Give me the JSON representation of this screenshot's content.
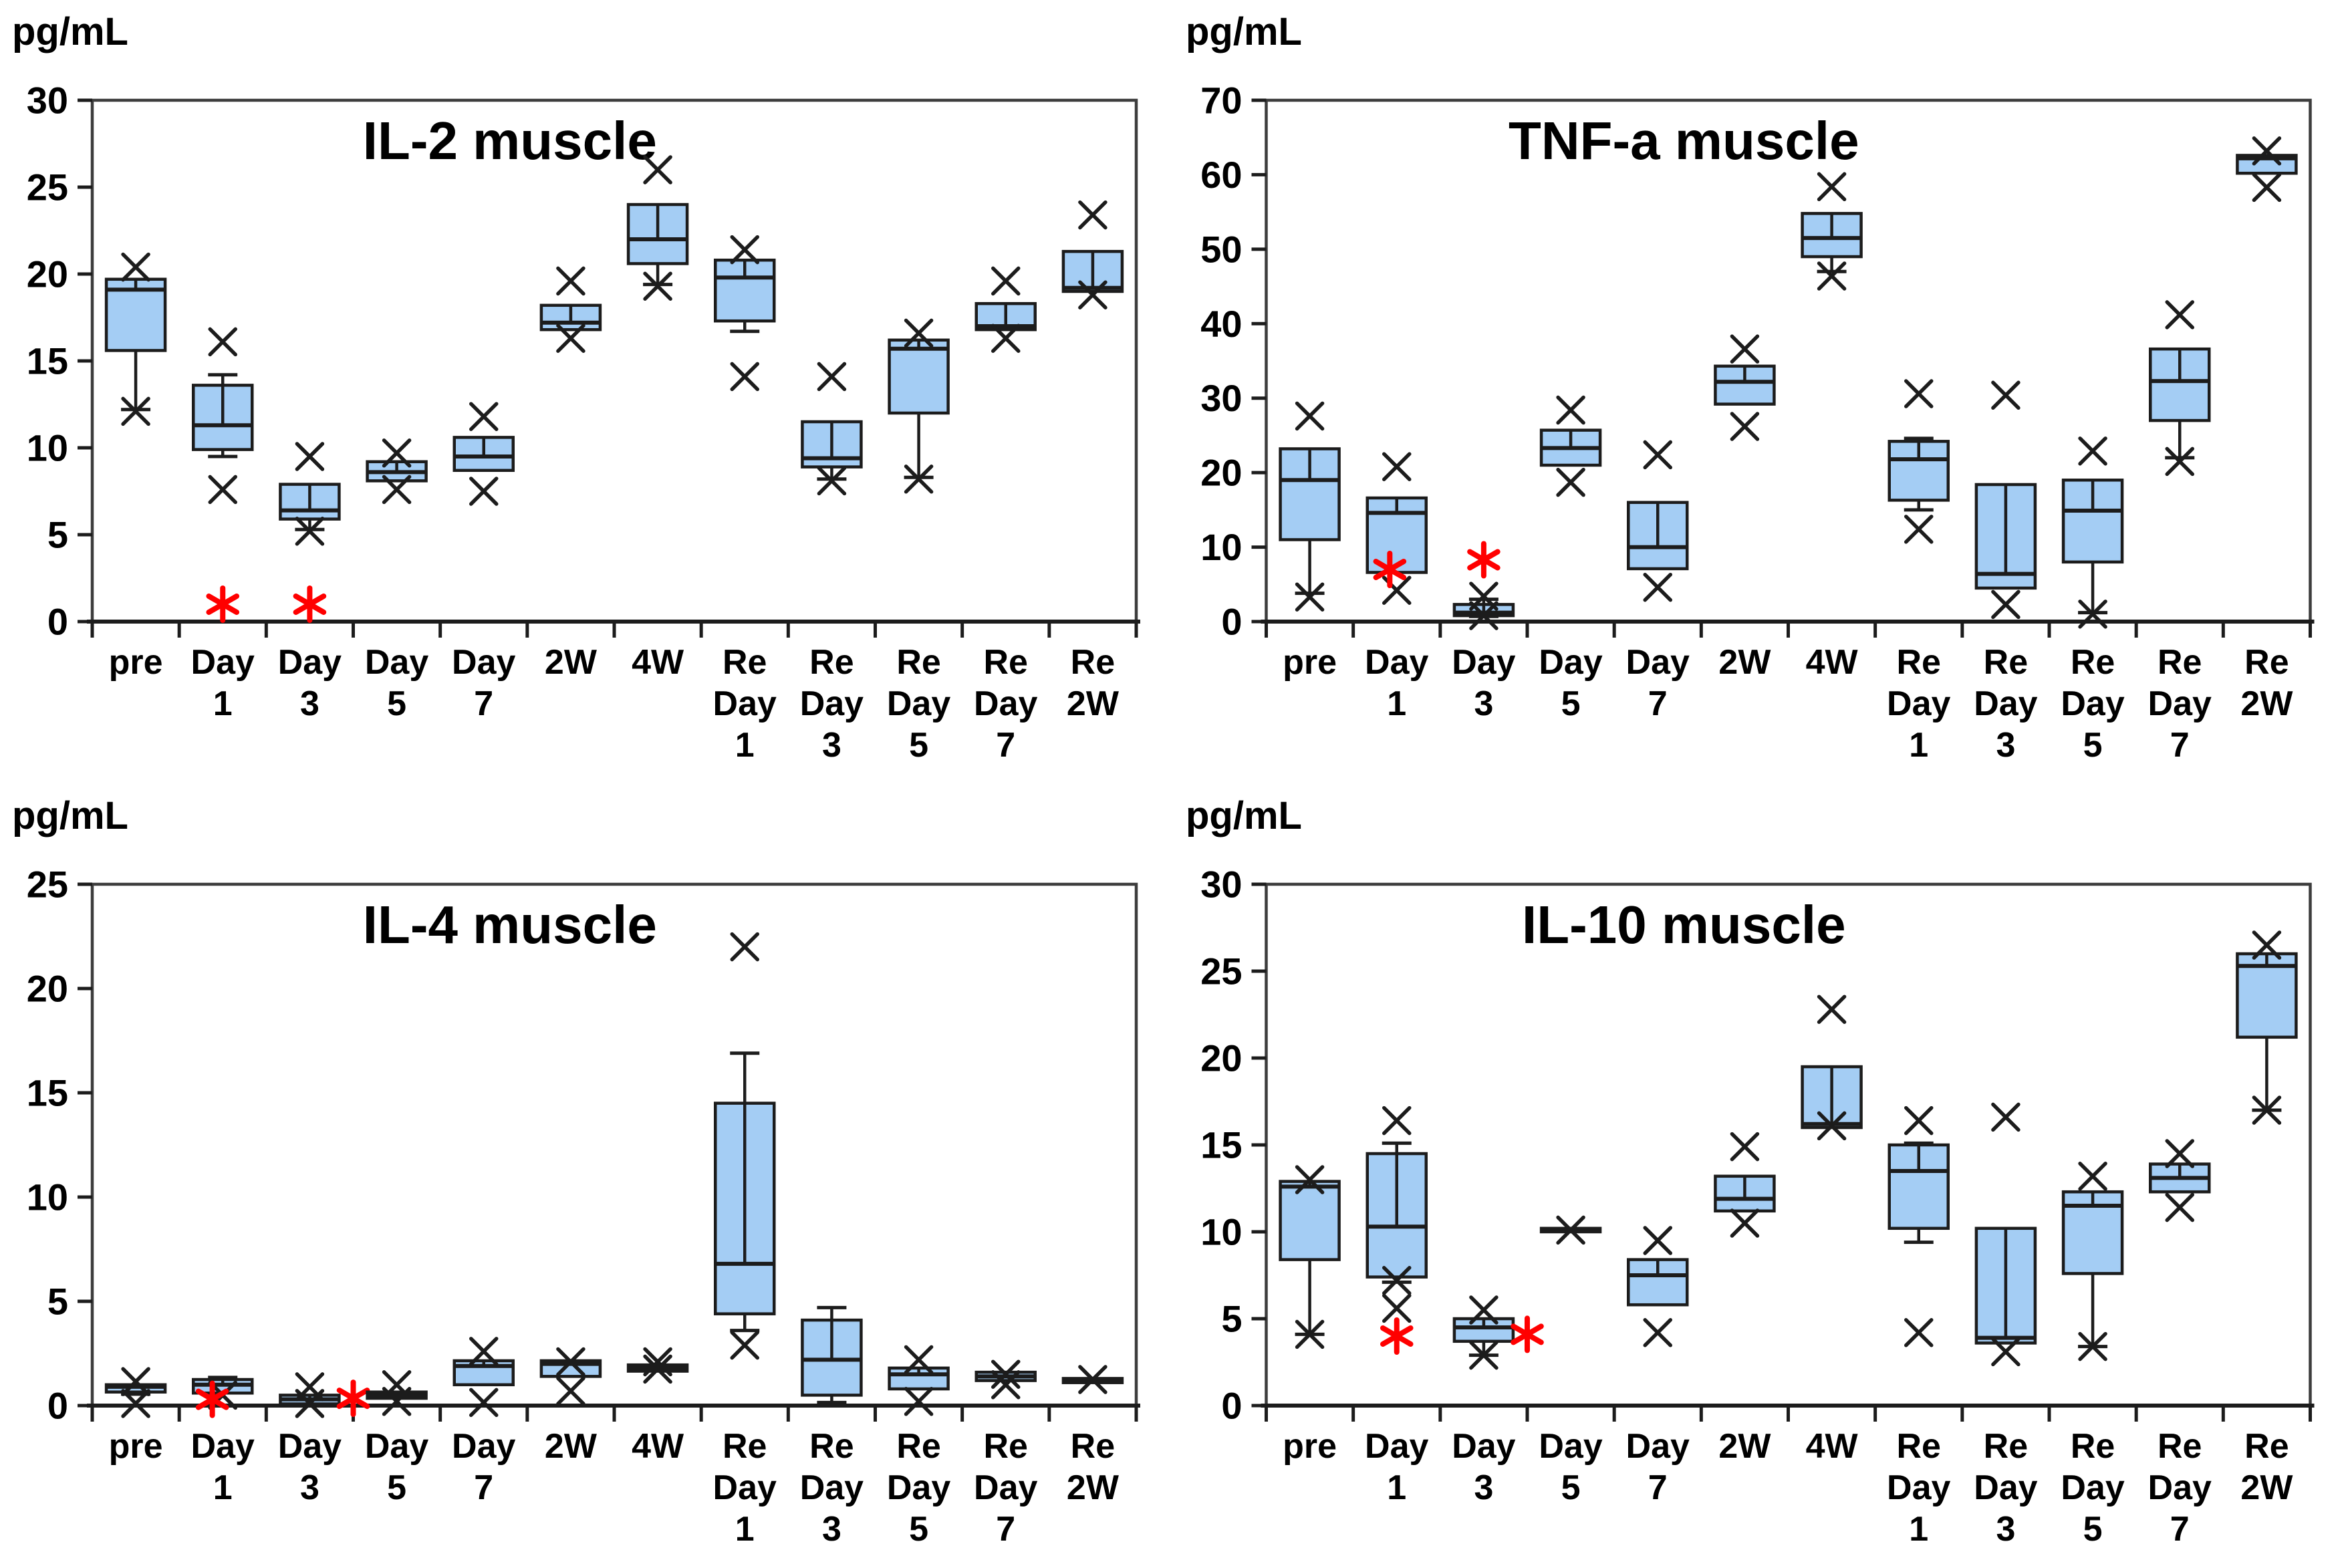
{
  "figure": {
    "unit": "pg/mL"
  },
  "colors": {
    "box_fill": "#A4CDF4",
    "line": "#1C1C1C",
    "plot_border": "#3D3D3D",
    "star": "#FF0000",
    "background": "#FFFFFF",
    "text": "#000000"
  },
  "categories": [
    [
      "pre"
    ],
    [
      "Day",
      "1"
    ],
    [
      "Day",
      "3"
    ],
    [
      "Day",
      "5"
    ],
    [
      "Day",
      "7"
    ],
    [
      "2W"
    ],
    [
      "4W"
    ],
    [
      "Re",
      "Day",
      "1"
    ],
    [
      "Re",
      "Day",
      "3"
    ],
    [
      "Re",
      "Day",
      "5"
    ],
    [
      "Re",
      "Day",
      "7"
    ],
    [
      "Re",
      "2W"
    ]
  ],
  "chart_data": [
    {
      "type": "box",
      "title": "IL-2 muscle",
      "ylabel": "pg/mL",
      "ylim": [
        0,
        30
      ],
      "ytick_step": 5,
      "grid": false,
      "legend": null,
      "boxes": [
        {
          "lo": 12.2,
          "q1": 15.6,
          "med": 19.1,
          "q3": 19.7,
          "hi": 19.7,
          "out": [
            20.4,
            12.1
          ],
          "star": null
        },
        {
          "lo": 9.5,
          "q1": 9.9,
          "med": 11.3,
          "q3": 13.6,
          "hi": 14.2,
          "out": [
            16.1,
            7.6
          ],
          "star": {
            "v": 1.0,
            "dx": 0
          }
        },
        {
          "lo": 5.3,
          "q1": 5.9,
          "med": 6.4,
          "q3": 7.9,
          "hi": 7.9,
          "out": [
            9.5,
            5.2
          ],
          "star": {
            "v": 1.0,
            "dx": 0
          }
        },
        {
          "lo": 8.1,
          "q1": 8.1,
          "med": 8.6,
          "q3": 9.2,
          "hi": 9.2,
          "out": [
            9.7,
            7.6
          ],
          "star": null
        },
        {
          "lo": 8.7,
          "q1": 8.7,
          "med": 9.5,
          "q3": 10.6,
          "hi": 10.6,
          "out": [
            11.8,
            7.5
          ],
          "star": null
        },
        {
          "lo": 16.8,
          "q1": 16.8,
          "med": 17.2,
          "q3": 18.2,
          "hi": 18.2,
          "out": [
            19.6,
            16.3
          ],
          "star": null
        },
        {
          "lo": 19.4,
          "q1": 20.6,
          "med": 22.0,
          "q3": 24.0,
          "hi": 24.0,
          "out": [
            26.0,
            19.3
          ],
          "star": null
        },
        {
          "lo": 16.7,
          "q1": 17.3,
          "med": 19.8,
          "q3": 20.8,
          "hi": 20.8,
          "out": [
            21.4,
            14.1
          ],
          "star": null
        },
        {
          "lo": 8.2,
          "q1": 8.9,
          "med": 9.4,
          "q3": 11.5,
          "hi": 11.5,
          "out": [
            14.1,
            8.1
          ],
          "star": null
        },
        {
          "lo": 8.3,
          "q1": 12.0,
          "med": 15.7,
          "q3": 16.2,
          "hi": 16.2,
          "out": [
            16.6,
            8.2
          ],
          "star": null
        },
        {
          "lo": 16.8,
          "q1": 16.8,
          "med": 17.0,
          "q3": 18.3,
          "hi": 18.3,
          "out": [
            19.6,
            16.3
          ],
          "star": null
        },
        {
          "lo": 19.0,
          "q1": 19.0,
          "med": 19.2,
          "q3": 21.3,
          "hi": 21.3,
          "out": [
            23.4,
            18.8
          ],
          "star": null
        }
      ]
    },
    {
      "type": "box",
      "title": "TNF-a muscle",
      "ylabel": "pg/mL",
      "ylim": [
        0,
        70
      ],
      "ytick_step": 10,
      "grid": false,
      "legend": null,
      "boxes": [
        {
          "lo": 3.8,
          "q1": 11.0,
          "med": 19.0,
          "q3": 23.2,
          "hi": 23.2,
          "out": [
            27.6,
            3.3
          ],
          "star": null
        },
        {
          "lo": 6.6,
          "q1": 6.6,
          "med": 14.6,
          "q3": 16.6,
          "hi": 16.6,
          "out": [
            20.8,
            4.2
          ],
          "star": {
            "v": 7.0,
            "dx": -0.08
          }
        },
        {
          "lo": 0.7,
          "q1": 0.8,
          "med": 1.2,
          "q3": 2.3,
          "hi": 3.0,
          "out": [
            3.4,
            0.8
          ],
          "star": {
            "v": 8.3,
            "dx": 0
          }
        },
        {
          "lo": 21.0,
          "q1": 21.0,
          "med": 23.3,
          "q3": 25.7,
          "hi": 25.7,
          "out": [
            28.4,
            18.7
          ],
          "star": null
        },
        {
          "lo": 7.1,
          "q1": 7.1,
          "med": 10.0,
          "q3": 16.0,
          "hi": 16.0,
          "out": [
            22.4,
            4.6
          ],
          "star": null
        },
        {
          "lo": 29.2,
          "q1": 29.2,
          "med": 32.2,
          "q3": 34.3,
          "hi": 34.3,
          "out": [
            36.6,
            26.2
          ],
          "star": null
        },
        {
          "lo": 47.0,
          "q1": 49.0,
          "med": 51.5,
          "q3": 54.8,
          "hi": 54.8,
          "out": [
            58.4,
            46.4
          ],
          "star": null
        },
        {
          "lo": 15.0,
          "q1": 16.3,
          "med": 21.8,
          "q3": 24.2,
          "hi": 24.6,
          "out": [
            30.6,
            12.4
          ],
          "star": null
        },
        {
          "lo": 4.5,
          "q1": 4.5,
          "med": 6.4,
          "q3": 18.4,
          "hi": 18.4,
          "out": [
            30.4,
            2.3
          ],
          "star": null
        },
        {
          "lo": 1.2,
          "q1": 8.0,
          "med": 14.9,
          "q3": 19.0,
          "hi": 19.0,
          "out": [
            22.9,
            1.0
          ],
          "star": null
        },
        {
          "lo": 22.0,
          "q1": 27.0,
          "med": 32.3,
          "q3": 36.6,
          "hi": 36.6,
          "out": [
            41.2,
            21.5
          ],
          "star": null
        },
        {
          "lo": 60.2,
          "q1": 60.2,
          "med": 62.2,
          "q3": 62.6,
          "hi": 62.6,
          "out": [
            63.2,
            58.3
          ],
          "star": null
        }
      ]
    },
    {
      "type": "box",
      "title": "IL-4 muscle",
      "ylabel": "pg/mL",
      "ylim": [
        0,
        25
      ],
      "ytick_step": 5,
      "grid": false,
      "legend": null,
      "boxes": [
        {
          "lo": 0.55,
          "q1": 0.65,
          "med": 0.9,
          "q3": 1.0,
          "hi": 1.0,
          "out": [
            1.15,
            0.1
          ],
          "star": null
        },
        {
          "lo": 0.6,
          "q1": 0.6,
          "med": 1.0,
          "q3": 1.25,
          "hi": 1.35,
          "out": [
            0.5
          ],
          "star": {
            "v": 0.3,
            "dx": -0.12
          }
        },
        {
          "lo": 0.08,
          "q1": 0.08,
          "med": 0.3,
          "q3": 0.5,
          "hi": 0.5,
          "out": [
            0.9,
            0.1
          ],
          "star": {
            "v": 0.35,
            "dx": 0.5
          }
        },
        {
          "lo": 0.35,
          "q1": 0.35,
          "med": 0.5,
          "q3": 0.65,
          "hi": 0.65,
          "out": [
            1.0,
            0.2
          ],
          "star": null
        },
        {
          "lo": 1.0,
          "q1": 1.0,
          "med": 1.9,
          "q3": 2.15,
          "hi": 2.15,
          "out": [
            2.6,
            0.15
          ],
          "star": null
        },
        {
          "lo": 1.4,
          "q1": 1.4,
          "med": 2.0,
          "q3": 2.15,
          "hi": 2.15,
          "out": [
            2.1,
            0.7
          ],
          "star": null
        },
        {
          "lo": 1.65,
          "q1": 1.65,
          "med": 1.8,
          "q3": 1.95,
          "hi": 1.95,
          "out": [
            2.1,
            1.75
          ],
          "star": null
        },
        {
          "lo": 3.6,
          "q1": 4.4,
          "med": 6.8,
          "q3": 14.5,
          "hi": 16.9,
          "out": [
            22.0,
            2.9
          ],
          "star": null
        },
        {
          "lo": 0.15,
          "q1": 0.5,
          "med": 2.2,
          "q3": 4.1,
          "hi": 4.7,
          "out": [],
          "star": null
        },
        {
          "lo": 0.8,
          "q1": 0.8,
          "med": 1.5,
          "q3": 1.8,
          "hi": 1.8,
          "out": [
            2.2,
            0.2
          ],
          "star": null
        },
        {
          "lo": 1.2,
          "q1": 1.2,
          "med": 1.4,
          "q3": 1.6,
          "hi": 1.6,
          "out": [
            1.5,
            1.0
          ],
          "star": null
        },
        {
          "lo": 1.1,
          "q1": 1.1,
          "med": 1.2,
          "q3": 1.3,
          "hi": 1.3,
          "out": [
            1.25
          ],
          "star": null
        }
      ]
    },
    {
      "type": "box",
      "title": "IL-10 muscle",
      "ylabel": "pg/mL",
      "ylim": [
        0,
        30
      ],
      "ytick_step": 5,
      "grid": false,
      "legend": null,
      "boxes": [
        {
          "lo": 4.1,
          "q1": 8.4,
          "med": 12.6,
          "q3": 12.9,
          "hi": 12.9,
          "out": [
            13.0,
            4.1
          ],
          "star": null
        },
        {
          "lo": 7.1,
          "q1": 7.4,
          "med": 10.3,
          "q3": 14.5,
          "hi": 15.1,
          "out": [
            16.4,
            7.2,
            5.6
          ],
          "star": {
            "v": 4.0,
            "dx": 0
          }
        },
        {
          "lo": 2.9,
          "q1": 3.7,
          "med": 4.5,
          "q3": 5.0,
          "hi": 5.0,
          "out": [
            5.5,
            2.9
          ],
          "star": {
            "v": 4.1,
            "dx": 0.5
          }
        },
        {
          "lo": 10.0,
          "q1": 10.0,
          "med": 10.1,
          "q3": 10.2,
          "hi": 10.2,
          "out": [
            10.1
          ],
          "star": null
        },
        {
          "lo": 5.8,
          "q1": 5.8,
          "med": 7.5,
          "q3": 8.4,
          "hi": 8.4,
          "out": [
            9.5,
            4.2
          ],
          "star": null
        },
        {
          "lo": 11.2,
          "q1": 11.2,
          "med": 11.9,
          "q3": 13.2,
          "hi": 13.2,
          "out": [
            14.9,
            10.5
          ],
          "star": null
        },
        {
          "lo": 16.0,
          "q1": 16.0,
          "med": 16.2,
          "q3": 19.5,
          "hi": 19.5,
          "out": [
            22.8,
            16.1
          ],
          "star": null
        },
        {
          "lo": 9.4,
          "q1": 10.2,
          "med": 13.5,
          "q3": 15.0,
          "hi": 15.1,
          "out": [
            16.4,
            4.2
          ],
          "star": null
        },
        {
          "lo": 3.6,
          "q1": 3.6,
          "med": 3.9,
          "q3": 10.2,
          "hi": 10.2,
          "out": [
            16.6,
            3.1
          ],
          "star": null
        },
        {
          "lo": 3.4,
          "q1": 7.6,
          "med": 11.5,
          "q3": 12.3,
          "hi": 12.3,
          "out": [
            13.2,
            3.4
          ],
          "star": null
        },
        {
          "lo": 12.3,
          "q1": 12.3,
          "med": 13.1,
          "q3": 13.9,
          "hi": 13.9,
          "out": [
            14.5,
            11.4
          ],
          "star": null
        },
        {
          "lo": 17.0,
          "q1": 21.2,
          "med": 25.3,
          "q3": 26.0,
          "hi": 26.0,
          "out": [
            26.5,
            17.0
          ],
          "star": null
        }
      ]
    }
  ]
}
